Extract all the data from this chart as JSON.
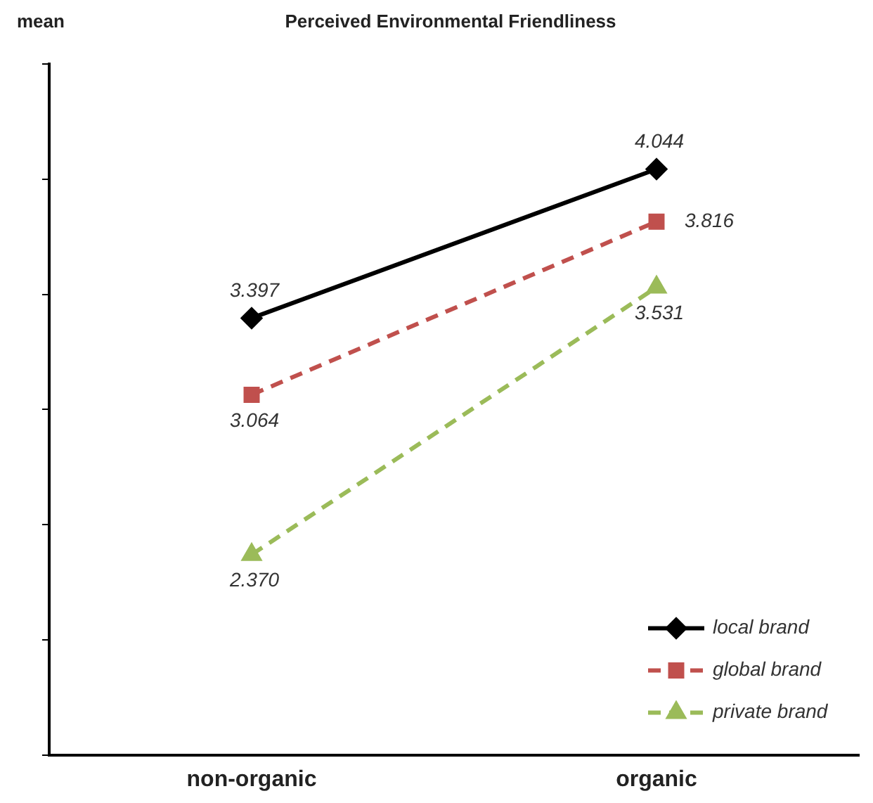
{
  "chart_data": {
    "type": "line",
    "title": "Perceived Environmental Friendliness",
    "ylabel": "mean",
    "categories": [
      "non-organic",
      "organic"
    ],
    "series": [
      {
        "name": "local brand",
        "color": "#000000",
        "values": [
          3.397,
          4.044
        ],
        "value_labels": [
          "3.397",
          "4.044"
        ],
        "marker": "diamond",
        "line_style": "solid"
      },
      {
        "name": "global brand",
        "color": "#c0504d",
        "values": [
          3.064,
          3.816
        ],
        "value_labels": [
          "3.064",
          "3.816"
        ],
        "marker": "square",
        "line_style": "dashed"
      },
      {
        "name": "private brand",
        "color": "#9bbb59",
        "values": [
          2.37,
          3.531
        ],
        "value_labels": [
          "2.370",
          "3.531"
        ],
        "marker": "triangle",
        "line_style": "dashed"
      }
    ],
    "ylim": [
      1.5,
      4.5
    ],
    "yticks": [
      {
        "value": 1.5,
        "label": null
      },
      {
        "value": 2,
        "label": null
      },
      {
        "value": 2.5,
        "label": null
      },
      {
        "value": 3,
        "label": null
      },
      {
        "value": 3.5,
        "label": null
      },
      {
        "value": 4,
        "label": null
      },
      {
        "value": 4.5,
        "label": null
      }
    ],
    "tick_labels": "x",
    "grid": false,
    "legend": "bottom right"
  }
}
